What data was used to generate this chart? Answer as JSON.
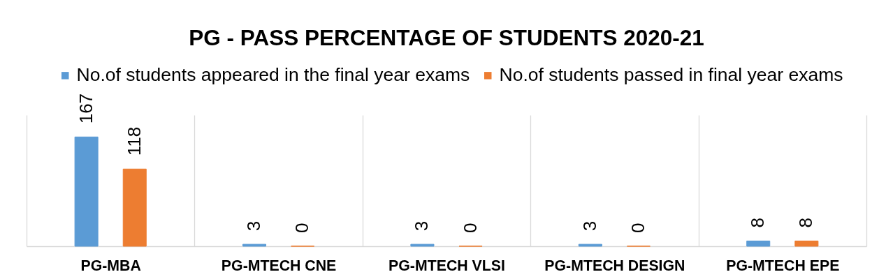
{
  "chart_data": {
    "type": "bar",
    "title": "PG - PASS PERCENTAGE OF STUDENTS 2020-21",
    "categories": [
      "PG-MBA",
      "PG-MTECH CNE",
      "PG-MTECH VLSI",
      "PG-MTECH DESIGN",
      "PG-MTECH EPE"
    ],
    "series": [
      {
        "name": "No.of students appeared in the final year exams",
        "color": "#5b9bd5",
        "values": [
          167,
          3,
          3,
          3,
          8
        ]
      },
      {
        "name": "No.of students passed in final year exams",
        "color": "#ed7d31",
        "values": [
          118,
          0,
          0,
          0,
          8
        ]
      }
    ],
    "data_labels": true,
    "grid": "x",
    "legend": "top",
    "tick_labels": "x"
  }
}
